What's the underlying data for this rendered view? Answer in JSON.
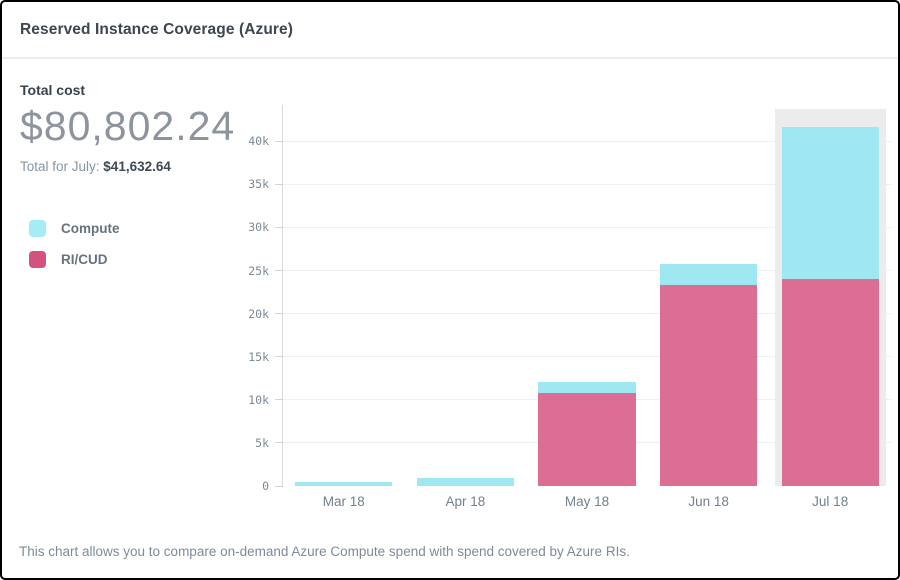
{
  "header": {
    "title": "Reserved Instance Coverage (Azure)"
  },
  "summary": {
    "label": "Total cost",
    "total": "$80,802.24",
    "period_label": "Total for July:",
    "period_value": "$41,632.64"
  },
  "legend": [
    {
      "label": "Compute",
      "color": "#a5ecf4"
    },
    {
      "label": "RI/CUD",
      "color": "#d4527e"
    }
  ],
  "footer": {
    "note": "This chart allows you to compare on-demand Azure Compute spend with spend covered by Azure RIs."
  },
  "chart_data": {
    "type": "bar",
    "stacked": true,
    "title": "Reserved Instance Coverage (Azure)",
    "categories": [
      "Mar 18",
      "Apr 18",
      "May 18",
      "Jun 18",
      "Jul 18"
    ],
    "series": [
      {
        "name": "RI/CUD",
        "color": "#dc6d95",
        "values": [
          0,
          0,
          10800,
          23300,
          24000
        ]
      },
      {
        "name": "Compute",
        "color": "#9fe8f2",
        "values": [
          520,
          930,
          1300,
          2400,
          17633
        ]
      }
    ],
    "totals": [
      520,
      930,
      12100,
      25700,
      41633
    ],
    "y_ticks": [
      "0",
      "5k",
      "10k",
      "15k",
      "20k",
      "25k",
      "30k",
      "35k",
      "40k"
    ],
    "y_tick_values": [
      0,
      5000,
      10000,
      15000,
      20000,
      25000,
      30000,
      35000,
      40000
    ],
    "ylim": [
      0,
      44200
    ],
    "grid": true,
    "legend_position": "left",
    "highlighted_category_index": 4,
    "highlight_color": "#ebeceb",
    "bar_width_frac": 0.8,
    "highlight_width_frac": 0.915
  }
}
